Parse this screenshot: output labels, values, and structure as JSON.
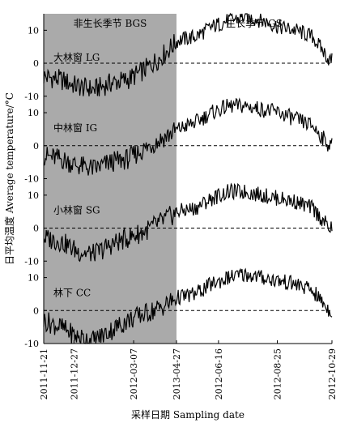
{
  "chart_data": {
    "type": "line",
    "xlabel": "采样日期 Sampling date",
    "ylabel": "日平均温度 Average temperature/°C",
    "x_ticks": [
      "2011-11-21",
      "2011-12-27",
      "2012-03-07",
      "2013-04-27",
      "2012-06-16",
      "2012-08-25",
      "2012-10-29"
    ],
    "season_labels": {
      "bgs": "非生长季节 BGS",
      "gs": "生长季节 GS"
    },
    "y_tick_labels": [
      "-10",
      "0",
      "10"
    ],
    "bgs_shading": {
      "from_day": 0,
      "to_day": 158,
      "color": "#aaaaaa"
    },
    "x_range_days": [
      0,
      343
    ],
    "panels": [
      {
        "name": "大林窗 LG",
        "ylim": [
          -10,
          15
        ],
        "values": [
          [
            0,
            -4
          ],
          [
            20,
            -5
          ],
          [
            40,
            -7
          ],
          [
            60,
            -8
          ],
          [
            80,
            -6
          ],
          [
            100,
            -5
          ],
          [
            120,
            -2
          ],
          [
            140,
            2
          ],
          [
            160,
            7
          ],
          [
            180,
            8
          ],
          [
            200,
            11
          ],
          [
            220,
            13
          ],
          [
            240,
            14
          ],
          [
            260,
            13
          ],
          [
            280,
            11
          ],
          [
            300,
            10
          ],
          [
            320,
            8
          ],
          [
            340,
            1
          ]
        ]
      },
      {
        "name": "中林窗 IG",
        "ylim": [
          -10,
          15
        ],
        "values": [
          [
            0,
            -3
          ],
          [
            20,
            -4
          ],
          [
            40,
            -6
          ],
          [
            60,
            -7
          ],
          [
            80,
            -5
          ],
          [
            100,
            -4
          ],
          [
            120,
            -1
          ],
          [
            140,
            2
          ],
          [
            160,
            5
          ],
          [
            180,
            7
          ],
          [
            200,
            10
          ],
          [
            220,
            12
          ],
          [
            240,
            12
          ],
          [
            260,
            11
          ],
          [
            280,
            10
          ],
          [
            300,
            8
          ],
          [
            320,
            6
          ],
          [
            340,
            0
          ]
        ]
      },
      {
        "name": "小林窗 SG",
        "ylim": [
          -10,
          15
        ],
        "values": [
          [
            0,
            -3
          ],
          [
            20,
            -4
          ],
          [
            40,
            -7
          ],
          [
            60,
            -8
          ],
          [
            80,
            -5
          ],
          [
            100,
            -3
          ],
          [
            120,
            -1
          ],
          [
            140,
            2
          ],
          [
            160,
            5
          ],
          [
            180,
            6
          ],
          [
            200,
            9
          ],
          [
            220,
            11
          ],
          [
            240,
            11
          ],
          [
            260,
            10
          ],
          [
            280,
            9
          ],
          [
            300,
            8
          ],
          [
            320,
            6
          ],
          [
            340,
            0
          ]
        ]
      },
      {
        "name": "林下 CC",
        "ylim": [
          -10,
          15
        ],
        "values": [
          [
            0,
            -3
          ],
          [
            20,
            -5
          ],
          [
            40,
            -8
          ],
          [
            60,
            -9
          ],
          [
            80,
            -6
          ],
          [
            100,
            -3
          ],
          [
            120,
            -1
          ],
          [
            140,
            1
          ],
          [
            160,
            4
          ],
          [
            180,
            5
          ],
          [
            200,
            8
          ],
          [
            220,
            10
          ],
          [
            240,
            11
          ],
          [
            260,
            10
          ],
          [
            280,
            9
          ],
          [
            300,
            8
          ],
          [
            320,
            6
          ],
          [
            340,
            0
          ]
        ]
      }
    ]
  }
}
